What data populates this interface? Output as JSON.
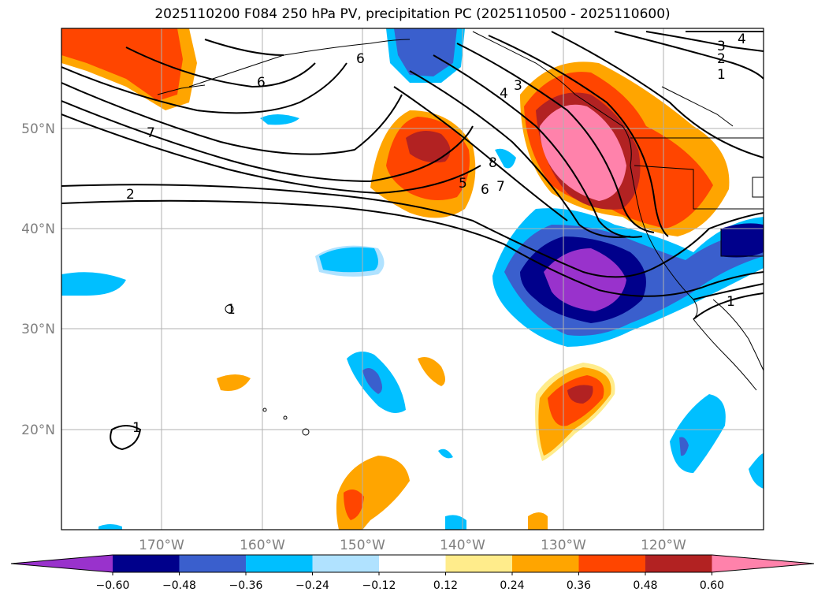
{
  "title": "2025110200 F084 250 hPa PV, precipitation PC (2025110500 - 2025110600)",
  "lon_labels": [
    "170°W",
    "160°W",
    "150°W",
    "140°W",
    "130°W",
    "120°W"
  ],
  "lat_labels": [
    "50°N",
    "40°N",
    "30°N",
    "20°N"
  ],
  "pv_contour_labels": [
    "6",
    "6",
    "7",
    "2",
    "3",
    "2",
    "1",
    "4",
    "3",
    "4",
    "5",
    "6",
    "7",
    "8",
    "1",
    "1",
    "1"
  ],
  "colorbar": {
    "ticks": [
      "−0.60",
      "−0.48",
      "−0.36",
      "−0.24",
      "−0.12",
      "0.12",
      "0.24",
      "0.36",
      "0.48",
      "0.60"
    ],
    "colors": [
      "#9932cc",
      "#00008b",
      "#3a5fcd",
      "#00bfff",
      "#b0e2ff",
      "#ffffff",
      "#ffec8b",
      "#ffa500",
      "#ff4500",
      "#b22222",
      "#ff82ab"
    ]
  },
  "chart_data": {
    "type": "map",
    "title": "2025110200 F084 250 hPa PV, precipitation PC (2025110500 - 2025110600)",
    "lon_range": [
      -180,
      -110
    ],
    "lat_range": [
      10,
      60
    ],
    "fields": [
      "250 hPa PV (contours, PVU)",
      "precipitation PC (shaded)"
    ],
    "pc_levels": [
      -0.6,
      -0.48,
      -0.36,
      -0.24,
      -0.12,
      0.12,
      0.24,
      0.36,
      0.48,
      0.6
    ]
  }
}
